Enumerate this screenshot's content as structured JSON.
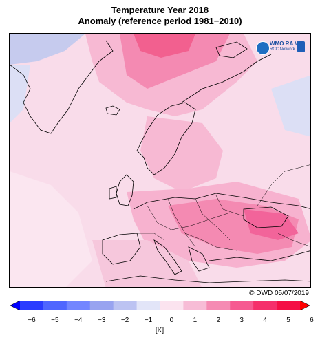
{
  "title_line1": "Temperature Year 2018",
  "title_line2": "Anomaly (reference period 1981−2010)",
  "logo": {
    "name": "WMO RA VI",
    "sub": "RCC Network",
    "icon": "globe-icon"
  },
  "credit": "© DWD 05/07/2019",
  "legend": {
    "unit": "[K]",
    "tick_labels": [
      "−6",
      "−5",
      "−4",
      "−3",
      "−2",
      "−1",
      "0",
      "1",
      "2",
      "3",
      "4",
      "5",
      "6"
    ],
    "colors": [
      "#0000ff",
      "#2a3cff",
      "#4f66ff",
      "#7386ff",
      "#98a3f0",
      "#bcc3f2",
      "#e2e5f8",
      "#fbe3ef",
      "#f7bcd6",
      "#f58bb3",
      "#f65a91",
      "#f52f6b",
      "#f40f45",
      "#ff0000"
    ]
  },
  "colors": {
    "sea_background": "#f7d6e6",
    "cool_anomaly": "#c9cff2",
    "warm_anomaly": "#f48bb3",
    "strong_warm": "#f25a90",
    "coastline": "#000000"
  }
}
